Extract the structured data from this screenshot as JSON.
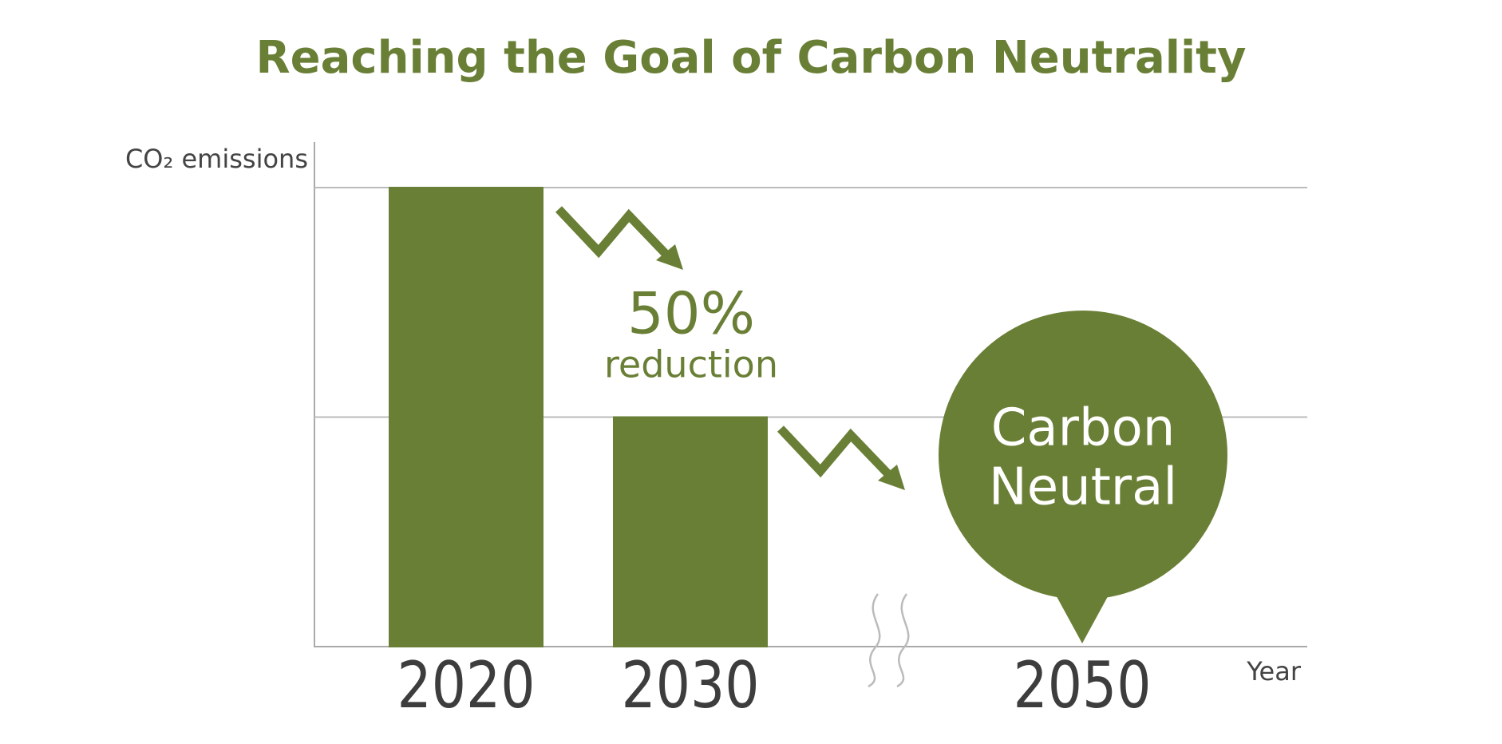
{
  "chart_data": {
    "type": "bar",
    "title": "Reaching the Goal of Carbon Neutrality",
    "y_label": "CO₂ emissions",
    "x_label": "Year",
    "categories": [
      "2020",
      "2030",
      "2050"
    ],
    "values": [
      100,
      50,
      0
    ],
    "color": "#6a7f36",
    "ylim": [
      0,
      100
    ],
    "grid_values": [
      50,
      100
    ],
    "grid": true,
    "annotation": {
      "value": "50%",
      "text": "reduction"
    },
    "callout": [
      "Carbon",
      "Neutral"
    ]
  }
}
